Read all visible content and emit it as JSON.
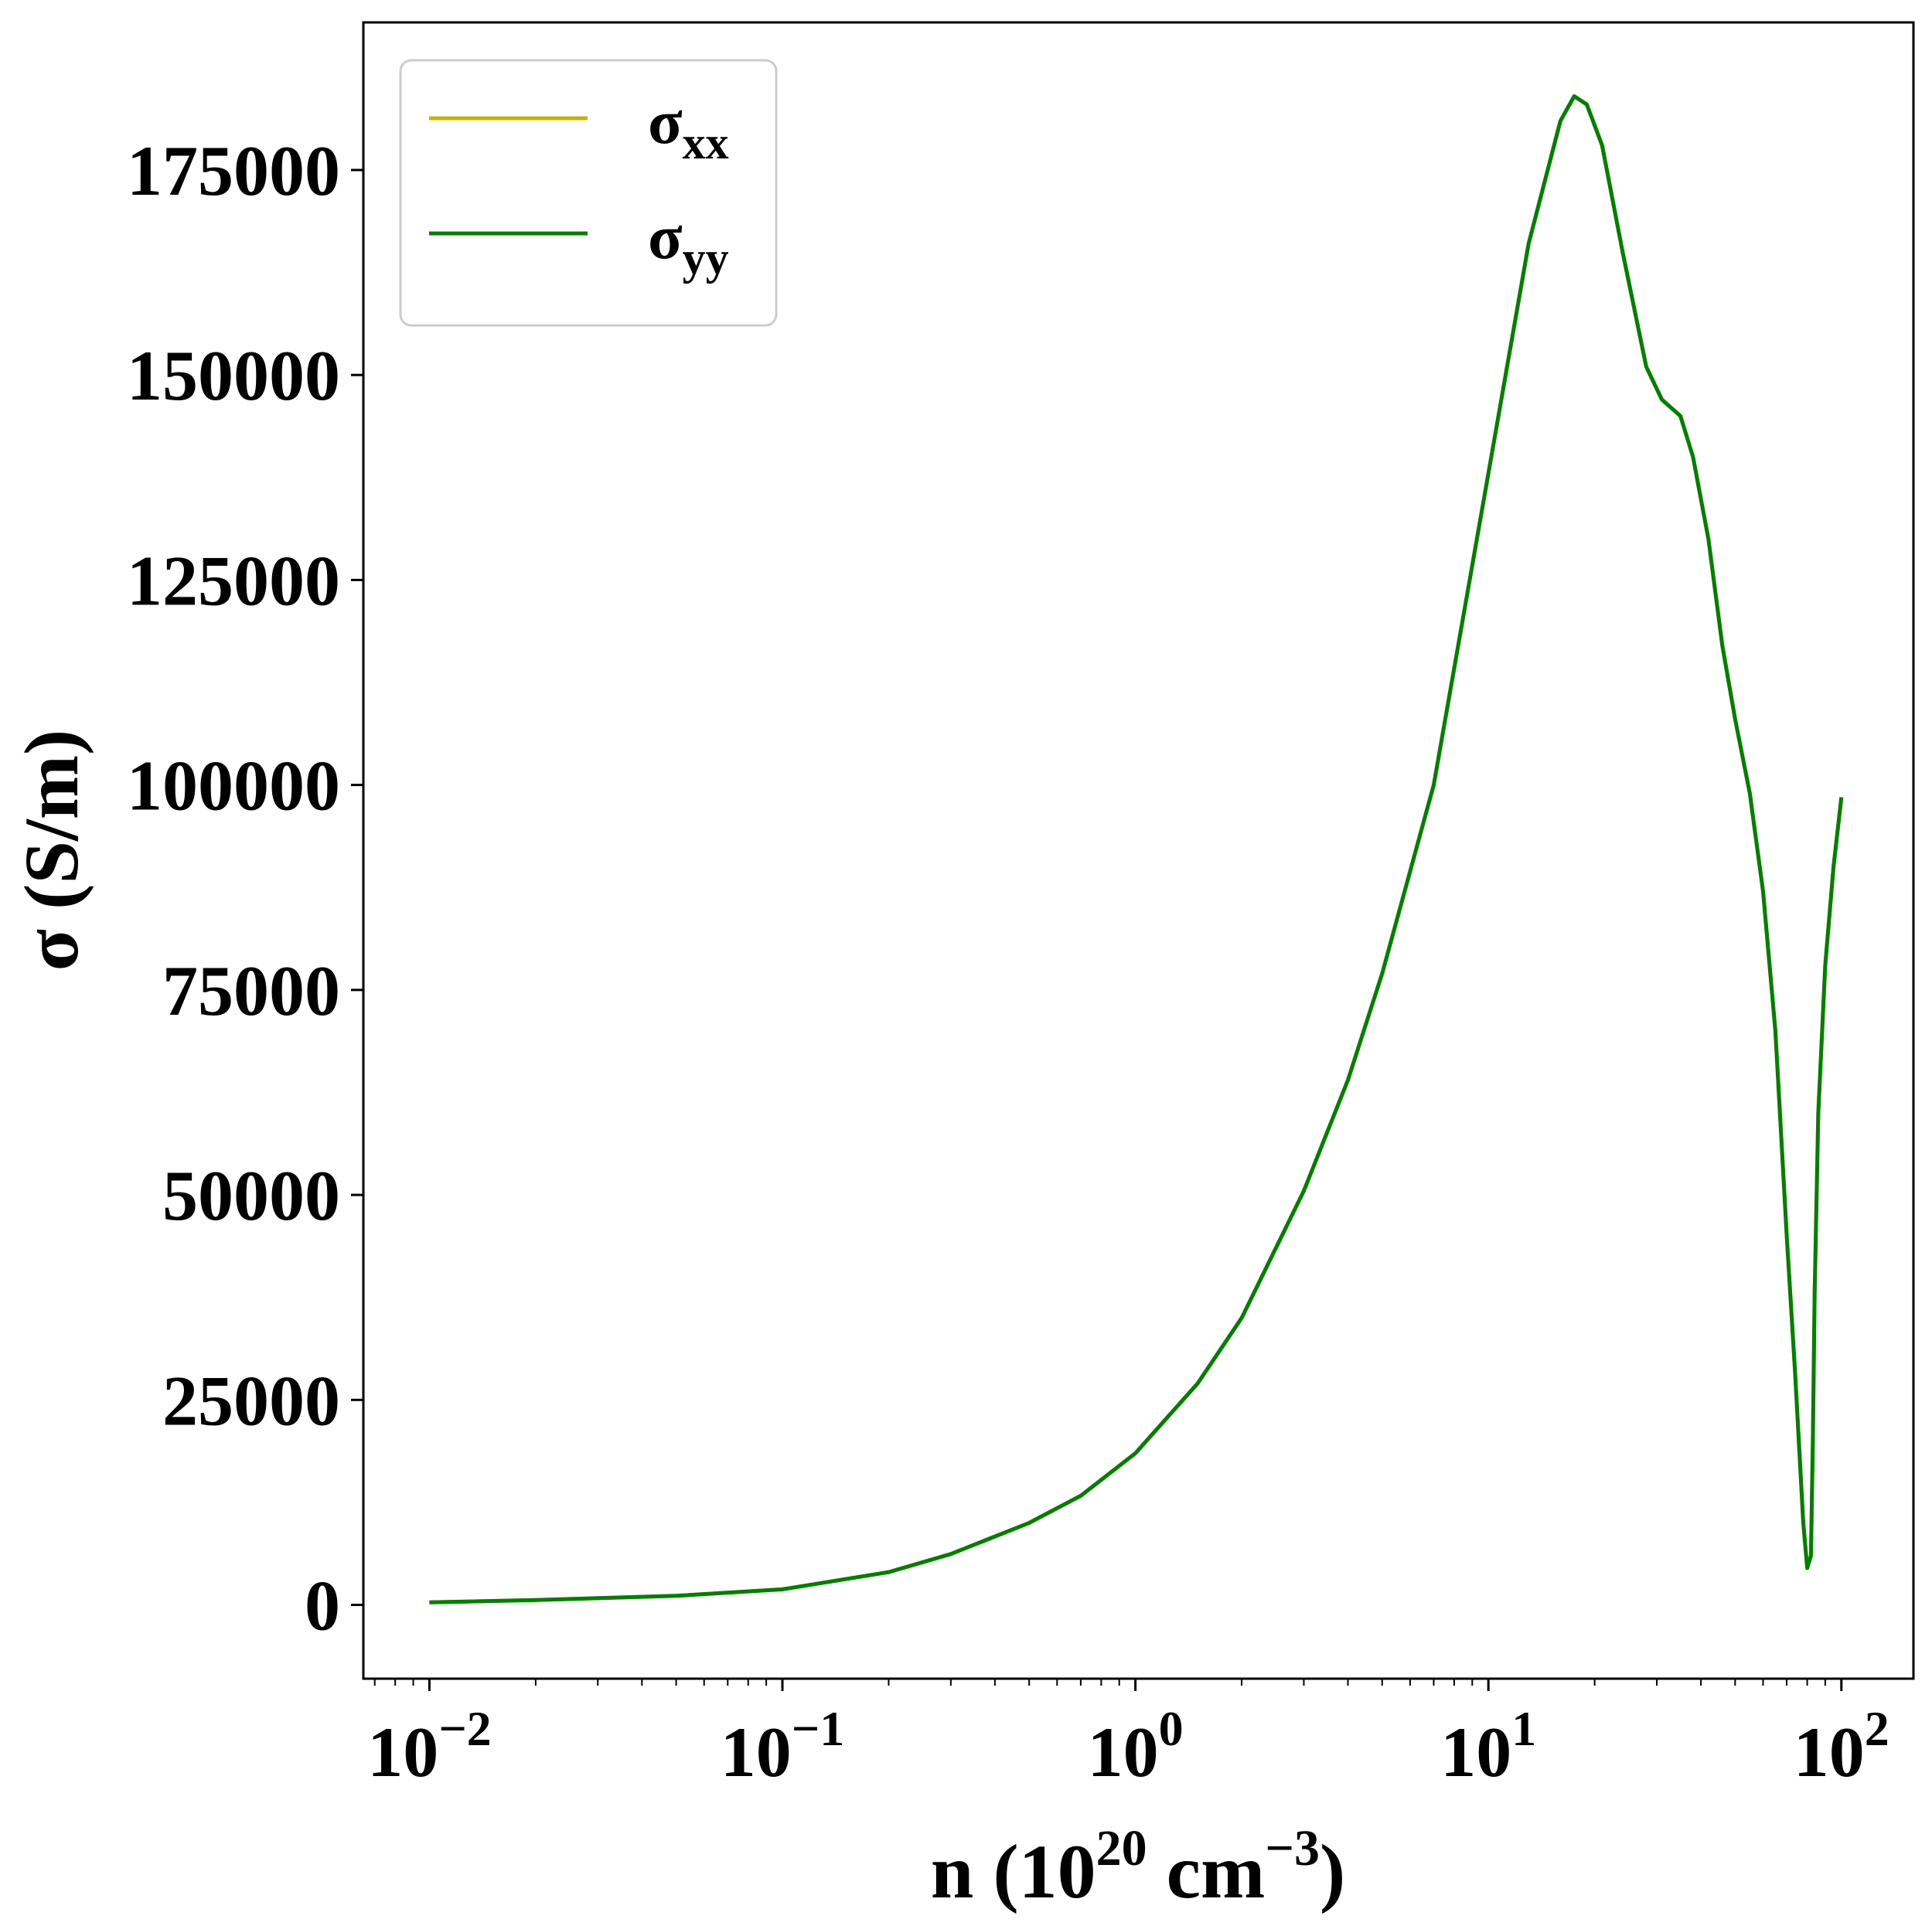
{
  "chart_data": {
    "type": "line",
    "xlabel": {
      "base": "n (10",
      "exp1": "20",
      "mid": " cm",
      "exp2": "−3",
      "end": ")"
    },
    "ylabel": "σ (S/m)",
    "xscale": "log",
    "xlim": [
      0.0065,
      160
    ],
    "ylim": [
      -9000,
      193000
    ],
    "yticks": [
      {
        "value": 0,
        "label": "0"
      },
      {
        "value": 25000,
        "label": "25000"
      },
      {
        "value": 50000,
        "label": "50000"
      },
      {
        "value": 75000,
        "label": "75000"
      },
      {
        "value": 100000,
        "label": "100000"
      },
      {
        "value": 125000,
        "label": "125000"
      },
      {
        "value": 150000,
        "label": "150000"
      },
      {
        "value": 175000,
        "label": "175000"
      }
    ],
    "xticks": [
      {
        "value": 0.01,
        "base": "10",
        "exp": "−2"
      },
      {
        "value": 0.1,
        "base": "10",
        "exp": "−1"
      },
      {
        "value": 1,
        "base": "10",
        "exp": "0"
      },
      {
        "value": 10,
        "base": "10",
        "exp": "1"
      },
      {
        "value": 100,
        "base": "10",
        "exp": "2"
      }
    ],
    "grid": false,
    "legend_position": "top-left",
    "series": [
      {
        "name": "σ",
        "name_sub": "xx",
        "color": "#c8b400",
        "x": [
          0.01,
          0.02,
          0.05,
          0.1,
          0.2,
          0.3,
          0.5,
          0.7,
          1.0,
          1.5,
          2.0,
          3.0,
          4.0,
          5.0,
          7.0,
          10.0,
          13.0,
          16.0,
          17.5,
          19.0,
          21.0,
          24.0,
          28.0,
          31.0,
          35.0,
          38.0,
          42.0,
          46.0,
          50.0,
          55.0,
          60.0,
          65.0,
          70.0,
          74.0,
          78.0,
          80.0,
          82.0,
          83.0,
          84.0,
          86.0,
          90.0,
          95.0,
          100.0
        ],
        "y": [
          300,
          600,
          1100,
          1900,
          4000,
          6200,
          10000,
          13300,
          18500,
          27000,
          35000,
          50500,
          64000,
          77000,
          100000,
          138000,
          166000,
          181000,
          184000,
          183000,
          178000,
          165000,
          151000,
          147000,
          145000,
          140000,
          130000,
          117000,
          108000,
          99000,
          87000,
          70000,
          45000,
          28000,
          10000,
          4500,
          6000,
          20000,
          38000,
          60000,
          78000,
          90000,
          98500
        ]
      },
      {
        "name": "σ",
        "name_sub": "yy",
        "color": "#008000",
        "x": [
          0.01,
          0.02,
          0.05,
          0.1,
          0.2,
          0.3,
          0.5,
          0.7,
          1.0,
          1.5,
          2.0,
          3.0,
          4.0,
          5.0,
          7.0,
          10.0,
          13.0,
          16.0,
          17.5,
          19.0,
          21.0,
          24.0,
          28.0,
          31.0,
          35.0,
          38.0,
          42.0,
          46.0,
          50.0,
          55.0,
          60.0,
          65.0,
          70.0,
          74.0,
          78.0,
          80.0,
          82.0,
          83.0,
          84.0,
          86.0,
          90.0,
          95.0,
          100.0
        ],
        "y": [
          300,
          600,
          1100,
          1900,
          4000,
          6200,
          10000,
          13300,
          18500,
          27000,
          35000,
          50500,
          64000,
          77000,
          100000,
          138000,
          166000,
          181000,
          184000,
          183000,
          178000,
          165000,
          151000,
          147000,
          145000,
          140000,
          130000,
          117000,
          108000,
          99000,
          87000,
          70000,
          45000,
          28000,
          10000,
          4500,
          6000,
          20000,
          38000,
          60000,
          78000,
          90000,
          98500
        ]
      }
    ]
  }
}
